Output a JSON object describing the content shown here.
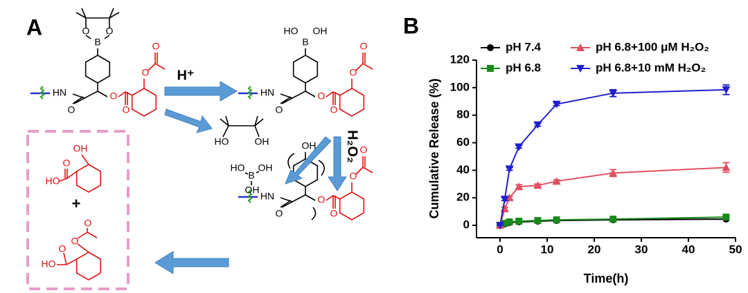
{
  "panels": [
    "A",
    "B"
  ],
  "scheme": {
    "reagent_acid": "H⁺",
    "reagent_oxidant": "H₂O₂",
    "atoms": [
      "O",
      "O",
      "B",
      "HN",
      "O",
      "O",
      "O",
      "O",
      "O",
      "HO",
      "OH",
      "B",
      "HN",
      "O",
      "O",
      "O",
      "O",
      "O",
      "HO",
      "OH",
      "HO",
      "B",
      "OH",
      "OH",
      "OH",
      "HN",
      "O",
      "O",
      "O",
      "O",
      "O",
      "OH",
      "HO",
      "O",
      "+",
      "O",
      "O",
      "O",
      "HO"
    ]
  },
  "chart_data": {
    "type": "line",
    "x_label": "Time(h)",
    "y_label": "Cumulative Release (%)",
    "xlim": [
      -5,
      50
    ],
    "ylim": [
      -9,
      120
    ],
    "xticks": [
      0,
      10,
      20,
      30,
      40,
      50
    ],
    "yticks": [
      0,
      20,
      40,
      60,
      80,
      100,
      120
    ],
    "x": [
      0,
      1,
      2,
      4,
      8,
      12,
      24,
      48
    ],
    "series": [
      {
        "name": "pH 7.4",
        "color": "#000000",
        "marker": "circle",
        "values": [
          0,
          1,
          2,
          2.5,
          3,
          3.5,
          4,
          4.5
        ],
        "errors": [
          0,
          0.5,
          0.5,
          0.5,
          0.5,
          0.5,
          0.5,
          0.5
        ]
      },
      {
        "name": "pH 6.8",
        "color": "#1a8a1a",
        "marker": "square",
        "values": [
          0,
          1.5,
          2.5,
          3,
          3.5,
          4,
          4.5,
          6
        ],
        "errors": [
          0,
          0.5,
          0.5,
          0.5,
          0.5,
          0.5,
          0.5,
          1
        ]
      },
      {
        "name": "pH 6.8+100 μM H₂O₂",
        "color": "#e05060",
        "marker": "triangle",
        "values": [
          0,
          12,
          20,
          28,
          29,
          32,
          38,
          42
        ],
        "errors": [
          0,
          1,
          1,
          1.5,
          1,
          1,
          2.5,
          3.5
        ]
      },
      {
        "name": "pH 6.8+10 mM H₂O₂",
        "color": "#1f1fd0",
        "marker": "triangle-down",
        "values": [
          0,
          19,
          41,
          57,
          73,
          88,
          96,
          98.5
        ],
        "errors": [
          0,
          1,
          1,
          1,
          1,
          1,
          2.5,
          3.5
        ]
      }
    ]
  }
}
